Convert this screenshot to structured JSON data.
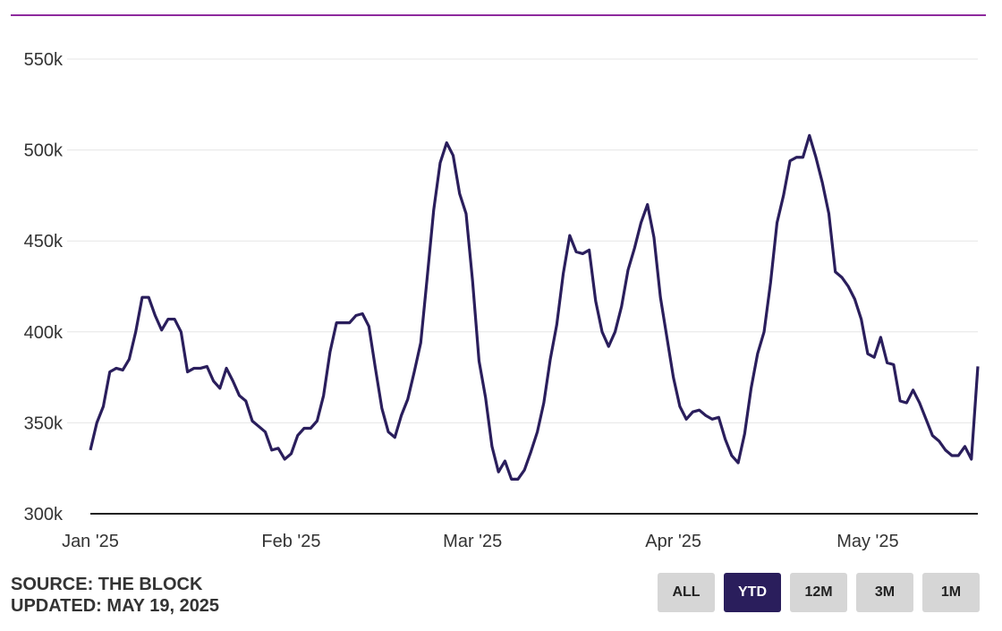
{
  "chart_data": {
    "type": "line",
    "x_type": "date",
    "x": [
      "2025-01-01",
      "2025-01-02",
      "2025-01-03",
      "2025-01-04",
      "2025-01-05",
      "2025-01-06",
      "2025-01-07",
      "2025-01-08",
      "2025-01-09",
      "2025-01-10",
      "2025-01-11",
      "2025-01-12",
      "2025-01-13",
      "2025-01-14",
      "2025-01-15",
      "2025-01-16",
      "2025-01-17",
      "2025-01-18",
      "2025-01-19",
      "2025-01-20",
      "2025-01-21",
      "2025-01-22",
      "2025-01-23",
      "2025-01-24",
      "2025-01-25",
      "2025-01-26",
      "2025-01-27",
      "2025-01-28",
      "2025-01-29",
      "2025-01-30",
      "2025-01-31",
      "2025-02-01",
      "2025-02-02",
      "2025-02-03",
      "2025-02-04",
      "2025-02-05",
      "2025-02-06",
      "2025-02-07",
      "2025-02-08",
      "2025-02-09",
      "2025-02-10",
      "2025-02-11",
      "2025-02-12",
      "2025-02-13",
      "2025-02-14",
      "2025-02-15",
      "2025-02-16",
      "2025-02-17",
      "2025-02-18",
      "2025-02-19",
      "2025-02-20",
      "2025-02-21",
      "2025-02-22",
      "2025-02-23",
      "2025-02-24",
      "2025-02-25",
      "2025-02-26",
      "2025-02-27",
      "2025-02-28",
      "2025-03-01",
      "2025-03-02",
      "2025-03-03",
      "2025-03-04",
      "2025-03-05",
      "2025-03-06",
      "2025-03-07",
      "2025-03-08",
      "2025-03-09",
      "2025-03-10",
      "2025-03-11",
      "2025-03-12",
      "2025-03-13",
      "2025-03-14",
      "2025-03-15",
      "2025-03-16",
      "2025-03-17",
      "2025-03-18",
      "2025-03-19",
      "2025-03-20",
      "2025-03-21",
      "2025-03-22",
      "2025-03-23",
      "2025-03-24",
      "2025-03-25",
      "2025-03-26",
      "2025-03-27",
      "2025-03-28",
      "2025-03-29",
      "2025-03-30",
      "2025-03-31",
      "2025-04-01",
      "2025-04-02",
      "2025-04-03",
      "2025-04-04",
      "2025-04-05",
      "2025-04-06",
      "2025-04-07",
      "2025-04-08",
      "2025-04-09",
      "2025-04-10",
      "2025-04-11",
      "2025-04-12",
      "2025-04-13",
      "2025-04-14",
      "2025-04-15",
      "2025-04-16",
      "2025-04-17",
      "2025-04-18",
      "2025-04-19",
      "2025-04-20",
      "2025-04-21",
      "2025-04-22",
      "2025-04-23",
      "2025-04-24",
      "2025-04-25",
      "2025-04-26",
      "2025-04-27",
      "2025-04-28",
      "2025-04-29",
      "2025-04-30",
      "2025-05-01",
      "2025-05-02",
      "2025-05-03",
      "2025-05-04",
      "2025-05-05",
      "2025-05-06",
      "2025-05-07",
      "2025-05-08",
      "2025-05-09",
      "2025-05-10",
      "2025-05-11",
      "2025-05-12",
      "2025-05-13",
      "2025-05-14",
      "2025-05-15",
      "2025-05-16",
      "2025-05-17",
      "2025-05-18"
    ],
    "series": [
      {
        "values": [
          335000,
          350000,
          359000,
          378000,
          380000,
          379000,
          385000,
          400000,
          419000,
          419000,
          409000,
          401000,
          407000,
          407000,
          400000,
          378000,
          380000,
          380000,
          381000,
          373000,
          369000,
          380000,
          373000,
          365000,
          362000,
          351000,
          348000,
          345000,
          335000,
          336000,
          330000,
          333000,
          343000,
          347000,
          347000,
          351000,
          365000,
          389000,
          405000,
          405000,
          405000,
          409000,
          410000,
          403000,
          380000,
          358000,
          345000,
          342000,
          354000,
          363000,
          378000,
          394000,
          430000,
          467000,
          493000,
          504000,
          497000,
          476000,
          465000,
          428000,
          384000,
          364000,
          337000,
          323000,
          329000,
          319000,
          319000,
          324000,
          334000,
          345000,
          361000,
          385000,
          404000,
          432000,
          453000,
          444000,
          443000,
          445000,
          417000,
          400000,
          392000,
          400000,
          414000,
          434000,
          446000,
          460000,
          470000,
          452000,
          419000,
          397000,
          375000,
          359000,
          352000,
          356000,
          357000,
          354000,
          352000,
          353000,
          341000,
          332000,
          328000,
          344000,
          369000,
          388000,
          400000,
          427000,
          460000,
          475000,
          494000,
          496000,
          496000,
          508000,
          496000,
          482000,
          465000,
          433000,
          430000,
          425000,
          418000,
          407000,
          388000,
          386000,
          397000,
          383000,
          382000,
          362000,
          361000,
          368000,
          361000,
          352000,
          343000,
          340000,
          335000,
          332000,
          332000,
          337000,
          330000,
          381000
        ],
        "color": "#2a1e5c"
      }
    ],
    "y_ticks": [
      "300k",
      "350k",
      "400k",
      "450k",
      "500k",
      "550k"
    ],
    "y_tick_values": [
      300000,
      350000,
      400000,
      450000,
      500000,
      550000
    ],
    "ylim": [
      300000,
      550000
    ],
    "x_ticks": [
      "Jan '25",
      "Feb '25",
      "Mar '25",
      "Apr '25",
      "May '25"
    ],
    "x_tick_dates": [
      "2025-01-01",
      "2025-02-01",
      "2025-03-01",
      "2025-04-01",
      "2025-05-01"
    ],
    "title": "",
    "xlabel": "",
    "ylabel": "",
    "grid": "horizontal",
    "legend": "none"
  },
  "footer": {
    "source": "SOURCE: THE BLOCK",
    "updated": "UPDATED: MAY 19, 2025"
  },
  "range_buttons": [
    {
      "label": "ALL",
      "active": false
    },
    {
      "label": "YTD",
      "active": true
    },
    {
      "label": "12M",
      "active": false
    },
    {
      "label": "3M",
      "active": false
    },
    {
      "label": "1M",
      "active": false
    }
  ],
  "colors": {
    "accent_rule": "#8e2a9e",
    "line": "#2a1e5c",
    "button_active": "#2a1e5c",
    "button_inactive": "#d6d6d6"
  }
}
